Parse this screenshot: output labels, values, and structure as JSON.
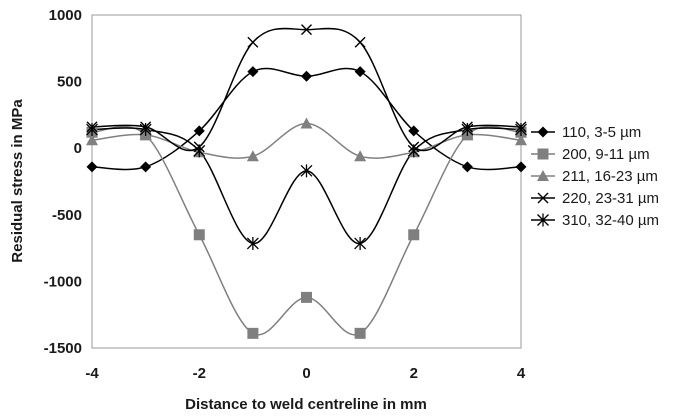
{
  "chart_data": {
    "type": "line",
    "xlabel": "Distance to weld centreline in mm",
    "ylabel": "Residual stress in MPa",
    "xlim": [
      -4,
      4
    ],
    "ylim": [
      -1500,
      1000
    ],
    "xticks": [
      "-4",
      "-2",
      "0",
      "2",
      "4"
    ],
    "yticks": [
      "1000",
      "500",
      "0",
      "-500",
      "-1000",
      "-1500"
    ],
    "grid": false,
    "legend_position": "right",
    "series": [
      {
        "name": "110, 3-5 µm",
        "color": "#000000",
        "marker": "diamond",
        "x": [
          -4,
          -3,
          -2,
          -1,
          0,
          1,
          2,
          3,
          4
        ],
        "y": [
          -140,
          -140,
          130,
          575,
          540,
          575,
          130,
          -140,
          -140
        ]
      },
      {
        "name": "200, 9-11 µm",
        "color": "#7f7f7f",
        "marker": "square",
        "x": [
          -4,
          -3,
          -2,
          -1,
          0,
          1,
          2,
          3,
          4
        ],
        "y": [
          120,
          100,
          -650,
          -1390,
          -1120,
          -1390,
          -650,
          100,
          120
        ]
      },
      {
        "name": "211, 16-23 µm",
        "color": "#808080",
        "marker": "triangle",
        "x": [
          -4,
          -3,
          -2,
          -1,
          0,
          1,
          2,
          3,
          4
        ],
        "y": [
          60,
          100,
          -30,
          -60,
          185,
          -60,
          -30,
          100,
          60
        ]
      },
      {
        "name": "220, 23-31 µm",
        "color": "#000000",
        "marker": "x",
        "x": [
          -4,
          -3,
          -2,
          -1,
          0,
          1,
          2,
          3,
          4
        ],
        "y": [
          160,
          160,
          10,
          795,
          890,
          795,
          10,
          160,
          160
        ]
      },
      {
        "name": "310, 32-40 µm",
        "color": "#000000",
        "marker": "asterisk",
        "x": [
          -4,
          -3,
          -2,
          -1,
          0,
          1,
          2,
          3,
          4
        ],
        "y": [
          140,
          140,
          -20,
          -715,
          -170,
          -715,
          -20,
          140,
          140
        ]
      }
    ]
  }
}
